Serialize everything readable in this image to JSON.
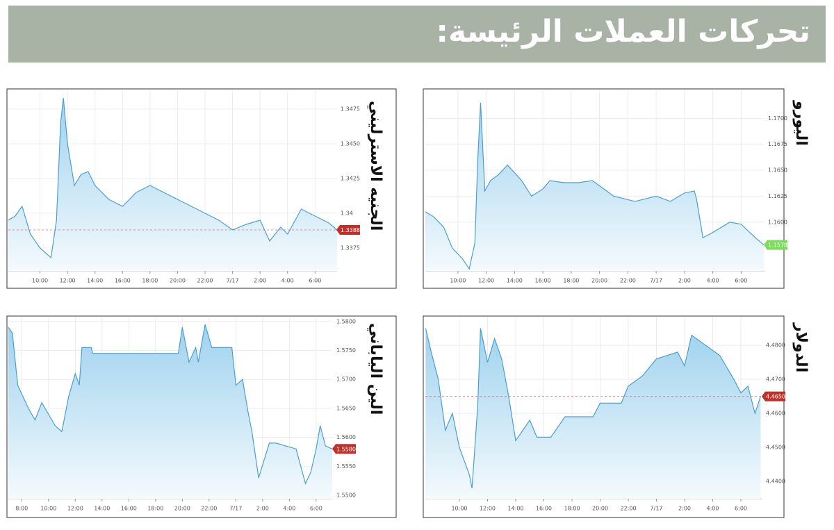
{
  "title": "تحركات العملات الرئيسة:",
  "chart_data": [
    {
      "type": "line",
      "title": "الجنيه الاسترليني",
      "line_color": "#4a9fd0",
      "grid": true,
      "ref_line": true,
      "x": [
        7.7,
        8.2,
        8.7,
        9.3,
        10,
        10.8,
        11.2,
        11.5,
        11.7,
        12,
        12.5,
        13,
        13.5,
        14,
        15,
        16,
        17,
        18,
        19,
        20,
        21,
        22,
        23,
        24,
        25,
        26,
        26.7,
        27.5,
        28,
        29,
        30,
        31,
        31.6
      ],
      "values": [
        1.3395,
        1.3398,
        1.3405,
        1.3385,
        1.3375,
        1.3368,
        1.3395,
        1.3465,
        1.3483,
        1.345,
        1.342,
        1.3428,
        1.343,
        1.342,
        1.341,
        1.3405,
        1.3415,
        1.342,
        1.3415,
        1.341,
        1.3405,
        1.34,
        1.3395,
        1.3388,
        1.3392,
        1.3395,
        1.338,
        1.339,
        1.3385,
        1.3403,
        1.3398,
        1.3393,
        1.3388
      ],
      "xlim": [
        7.7,
        31.6
      ],
      "ylim": [
        1.33585,
        1.34885
      ],
      "xticks": [
        {
          "value": 10,
          "label": "10:00"
        },
        {
          "value": 12,
          "label": "12:00"
        },
        {
          "value": 14,
          "label": "14:00"
        },
        {
          "value": 16,
          "label": "16:00"
        },
        {
          "value": 18,
          "label": "18:00"
        },
        {
          "value": 20,
          "label": "20:00"
        },
        {
          "value": 22,
          "label": "22:00"
        },
        {
          "value": 24,
          "label": "7/17"
        },
        {
          "value": 26,
          "label": "2:00"
        },
        {
          "value": 28,
          "label": "4:00"
        },
        {
          "value": 30,
          "label": "6:00"
        }
      ],
      "yticks": [
        {
          "value": 1.3475,
          "label": "1.3475"
        },
        {
          "value": 1.345,
          "label": "1.3450"
        },
        {
          "value": 1.3425,
          "label": "1.3425"
        },
        1.34,
        1.3375
      ],
      "last_value": 1.3388,
      "last_value_color": "#c0302b"
    },
    {
      "type": "line",
      "title": "اليورو",
      "line_color": "#4a9fd0",
      "grid": true,
      "ref_line": false,
      "x": [
        7.7,
        8.3,
        9,
        9.6,
        10.3,
        10.8,
        11.2,
        11.4,
        11.6,
        11.9,
        12.3,
        12.8,
        13.5,
        14.5,
        15.2,
        16,
        16.5,
        17.5,
        18.5,
        19.5,
        20.5,
        21,
        22.5,
        24,
        25,
        26,
        26.7,
        26.85,
        27.3,
        28,
        29.2,
        30,
        31,
        31.6
      ],
      "values": [
        1.161,
        1.1605,
        1.1595,
        1.1575,
        1.1565,
        1.1555,
        1.158,
        1.166,
        1.1715,
        1.163,
        1.164,
        1.1645,
        1.1655,
        1.164,
        1.1625,
        1.1632,
        1.164,
        1.1638,
        1.1638,
        1.164,
        1.163,
        1.1625,
        1.162,
        1.1625,
        1.162,
        1.1628,
        1.163,
        1.1622,
        1.1585,
        1.159,
        1.16,
        1.1598,
        1.1585,
        1.1578
      ],
      "xlim": [
        7.7,
        31.65
      ],
      "ylim": [
        1.1553,
        1.1727
      ],
      "xticks": [
        {
          "value": 10,
          "label": "10:00"
        },
        {
          "value": 12,
          "label": "12:00"
        },
        {
          "value": 14,
          "label": "14:00"
        },
        {
          "value": 16,
          "label": "16:00"
        },
        {
          "value": 18,
          "label": "18:00"
        },
        {
          "value": 20,
          "label": "20:00"
        },
        {
          "value": 22,
          "label": "22:00"
        },
        {
          "value": 24,
          "label": "7/17"
        },
        {
          "value": 26,
          "label": "2:00"
        },
        {
          "value": 28,
          "label": "4:00"
        },
        {
          "value": 30,
          "label": "6:00"
        }
      ],
      "yticks": [
        {
          "value": 1.17,
          "label": "1.1700"
        },
        1.1675,
        {
          "value": 1.165,
          "label": "1.1650"
        },
        1.1625,
        {
          "value": 1.16,
          "label": "1.1600"
        }
      ],
      "last_value": 1.1578,
      "last_value_color": "#7ddc5b"
    },
    {
      "type": "line",
      "title": "الين الياباني",
      "line_color": "#4a9fd0",
      "grid": true,
      "ref_line": false,
      "x": [
        7,
        7.3,
        7.7,
        8.5,
        9,
        9.5,
        10.5,
        11,
        11.5,
        12,
        12.3,
        12.5,
        13.2,
        13.3,
        19.7,
        20,
        20.5,
        21,
        21.2,
        21.7,
        22.2,
        23.7,
        24,
        24.5,
        24.9,
        25.2,
        25.7,
        26.5,
        27,
        28.5,
        29.2,
        29.6,
        30,
        30.3,
        30.7,
        31.2
      ],
      "values": [
        1.579,
        1.578,
        1.569,
        1.565,
        1.563,
        1.566,
        1.562,
        1.561,
        1.567,
        1.571,
        1.569,
        1.5755,
        1.5755,
        1.5745,
        1.5745,
        1.579,
        1.573,
        1.5755,
        1.573,
        1.5795,
        1.5755,
        1.5755,
        1.569,
        1.57,
        1.5645,
        1.561,
        1.553,
        1.559,
        1.559,
        1.558,
        1.552,
        1.554,
        1.558,
        1.562,
        1.5585,
        1.558
      ],
      "xlim": [
        7.0,
        31.2
      ],
      "ylim": [
        1.5494,
        1.5807
      ],
      "xticks": [
        {
          "value": 8,
          "label": "8:00"
        },
        {
          "value": 10,
          "label": "10:00"
        },
        {
          "value": 12,
          "label": "12:00"
        },
        {
          "value": 14,
          "label": "14:00"
        },
        {
          "value": 16,
          "label": "16:00"
        },
        {
          "value": 18,
          "label": "18:00"
        },
        {
          "value": 20,
          "label": "20:00"
        },
        {
          "value": 22,
          "label": "22:00"
        },
        {
          "value": 24,
          "label": "7/17"
        },
        {
          "value": 26,
          "label": "2:00"
        },
        {
          "value": 28,
          "label": "4:00"
        },
        {
          "value": 30,
          "label": "6:00"
        }
      ],
      "yticks": [
        {
          "value": 1.58,
          "label": "1.5800"
        },
        {
          "value": 1.575,
          "label": "1.5750"
        },
        {
          "value": 1.57,
          "label": "1.5700"
        },
        {
          "value": 1.565,
          "label": "1.5650"
        },
        {
          "value": 1.56,
          "label": "1.5600"
        },
        {
          "value": 1.555,
          "label": "1.5550"
        },
        {
          "value": 1.55,
          "label": "1.5500"
        }
      ],
      "last_value": {
        "value": 1.558,
        "label": "1.5580"
      },
      "last_value_color": "#c0302b"
    },
    {
      "type": "line",
      "title": "الدولار",
      "line_color": "#4a9fd0",
      "grid": true,
      "ref_line": true,
      "x": [
        7.6,
        8,
        8.5,
        9,
        9.5,
        10,
        10.7,
        10.9,
        11.3,
        11.5,
        12,
        12.5,
        13,
        13.5,
        14,
        14.5,
        15,
        15.5,
        16.5,
        17,
        17.5,
        19.5,
        20,
        21.5,
        22,
        23,
        24,
        25.5,
        26,
        26.5,
        27.5,
        28.5,
        29.5,
        30,
        30.5,
        31,
        31.4
      ],
      "values": [
        4.485,
        4.478,
        4.47,
        4.455,
        4.46,
        4.45,
        4.442,
        4.438,
        4.462,
        4.485,
        4.475,
        4.482,
        4.476,
        4.465,
        4.452,
        4.455,
        4.458,
        4.453,
        4.453,
        4.456,
        4.459,
        4.459,
        4.463,
        4.463,
        4.468,
        4.471,
        4.476,
        4.478,
        4.474,
        4.483,
        4.48,
        4.477,
        4.47,
        4.466,
        4.468,
        4.46,
        4.465
      ],
      "xlim": [
        7.58,
        31.48
      ],
      "ylim": [
        4.4349,
        4.4882
      ],
      "xticks": [
        {
          "value": 10,
          "label": "10:00"
        },
        {
          "value": 12,
          "label": "12:00"
        },
        {
          "value": 14,
          "label": "14:00"
        },
        {
          "value": 16,
          "label": "16:00"
        },
        {
          "value": 18,
          "label": "18:00"
        },
        {
          "value": 20,
          "label": "20:00"
        },
        {
          "value": 22,
          "label": "22:00"
        },
        {
          "value": 24,
          "label": "7/17"
        },
        {
          "value": 26,
          "label": "2:00"
        },
        {
          "value": 28,
          "label": "4:00"
        },
        {
          "value": 30,
          "label": "6:00"
        }
      ],
      "yticks": [
        {
          "value": 4.48,
          "label": "4.4800"
        },
        {
          "value": 4.47,
          "label": "4.4700"
        },
        {
          "value": 4.46,
          "label": "4.4600"
        },
        {
          "value": 4.45,
          "label": "4.4500"
        },
        {
          "value": 4.44,
          "label": "4.4400"
        }
      ],
      "last_value": {
        "value": 4.465,
        "label": "4.4650"
      },
      "last_value_color": "#c0302b"
    }
  ]
}
